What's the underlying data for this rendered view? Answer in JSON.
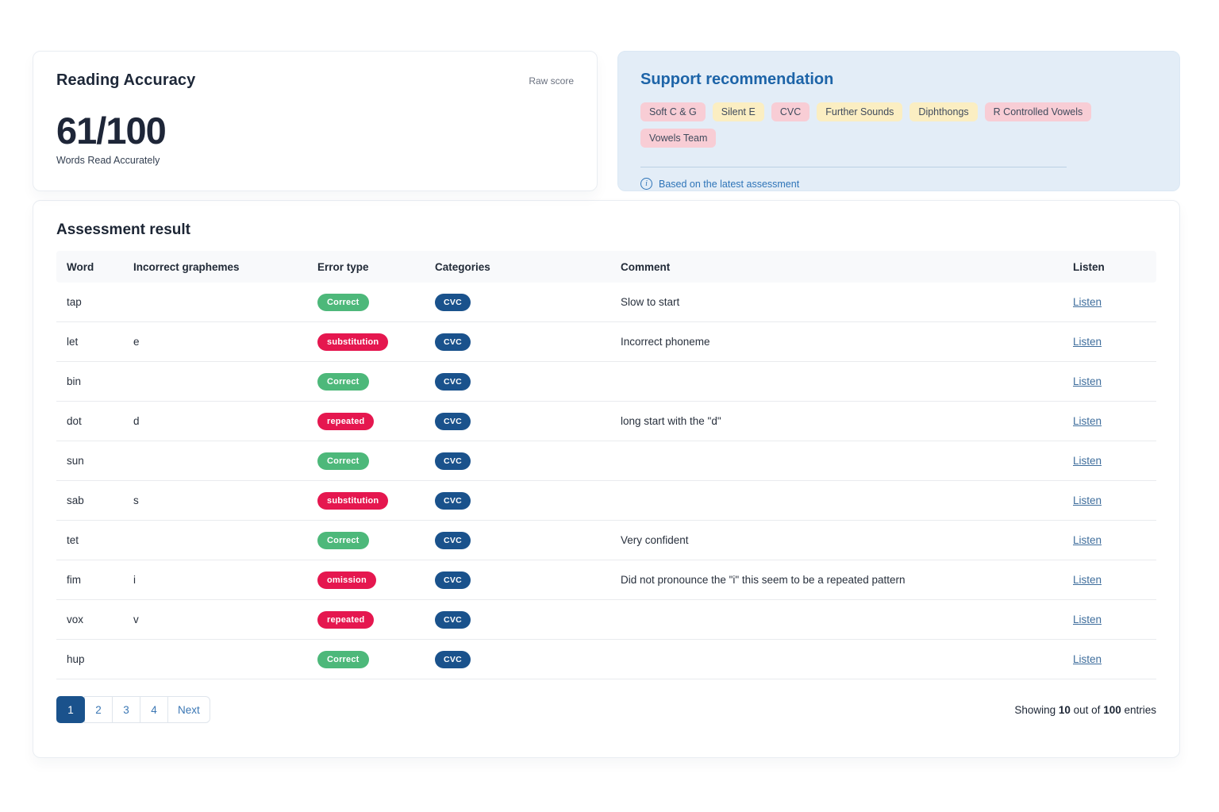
{
  "colors": {
    "support_bg": "#e3edf7",
    "title_blue": "#1d64a8",
    "note_blue": "#2e74b8",
    "tag_pink": "#f8cdd5",
    "tag_yellow": "#fbeec2",
    "green": "#4db87a",
    "red": "#e5174f",
    "navy": "#1a528c"
  },
  "icons": {
    "info": "i"
  },
  "accuracy_card": {
    "title": "Reading Accuracy",
    "raw_score_label": "Raw score",
    "score": "61/100",
    "subtitle": "Words Read Accurately"
  },
  "support_card": {
    "title": "Support recommendation",
    "tags": [
      {
        "label": "Soft C & G",
        "color": "pink"
      },
      {
        "label": "Silent E",
        "color": "yellow"
      },
      {
        "label": "CVC",
        "color": "pink"
      },
      {
        "label": "Further Sounds",
        "color": "yellow"
      },
      {
        "label": "Diphthongs",
        "color": "yellow"
      },
      {
        "label": "R Controlled Vowels",
        "color": "pink"
      },
      {
        "label": "Vowels Team",
        "color": "pink"
      }
    ],
    "note": "Based on the latest assessment"
  },
  "assessment": {
    "title": "Assessment result",
    "columns": [
      "Word",
      "Incorrect graphemes",
      "Error type",
      "Categories",
      "Comment",
      "Listen"
    ],
    "rows": [
      {
        "word": "tap",
        "incorrect_graphemes": "",
        "error_type": "Correct",
        "category": "CVC",
        "comment": "Slow to start",
        "listen": "Listen"
      },
      {
        "word": "let",
        "incorrect_graphemes": "e",
        "error_type": "substitution",
        "category": "CVC",
        "comment": "Incorrect phoneme",
        "listen": "Listen"
      },
      {
        "word": "bin",
        "incorrect_graphemes": "",
        "error_type": "Correct",
        "category": "CVC",
        "comment": "",
        "listen": "Listen"
      },
      {
        "word": "dot",
        "incorrect_graphemes": "d",
        "error_type": "repeated",
        "category": "CVC",
        "comment": "long start with the \"d\"",
        "listen": "Listen"
      },
      {
        "word": "sun",
        "incorrect_graphemes": "",
        "error_type": "Correct",
        "category": "CVC",
        "comment": "",
        "listen": "Listen"
      },
      {
        "word": "sab",
        "incorrect_graphemes": "s",
        "error_type": "substitution",
        "category": "CVC",
        "comment": "",
        "listen": "Listen"
      },
      {
        "word": "tet",
        "incorrect_graphemes": "",
        "error_type": "Correct",
        "category": "CVC",
        "comment": "Very confident",
        "listen": "Listen"
      },
      {
        "word": "fim",
        "incorrect_graphemes": "i",
        "error_type": "omission",
        "category": "CVC",
        "comment": "Did not pronounce the \"i\" this seem to be a repeated pattern",
        "listen": "Listen"
      },
      {
        "word": "vox",
        "incorrect_graphemes": "v",
        "error_type": "repeated",
        "category": "CVC",
        "comment": "",
        "listen": "Listen"
      },
      {
        "word": "hup",
        "incorrect_graphemes": "",
        "error_type": "Correct",
        "category": "CVC",
        "comment": "",
        "listen": "Listen"
      }
    ],
    "pagination": {
      "buttons": [
        {
          "label": "1",
          "active": true
        },
        {
          "label": "2",
          "active": false
        },
        {
          "label": "3",
          "active": false
        },
        {
          "label": "4",
          "active": false
        },
        {
          "label": "Next",
          "active": false
        }
      ]
    },
    "summary": {
      "prefix": "Showing ",
      "count": "10",
      "middle": " out of ",
      "total": "100",
      "suffix": " entries"
    }
  }
}
